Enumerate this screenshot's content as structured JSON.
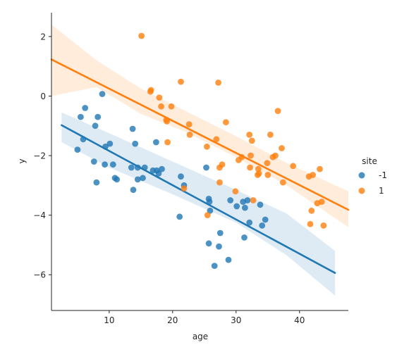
{
  "chart_data": {
    "type": "scatter",
    "xlabel": "age",
    "ylabel": "y",
    "xlim": [
      0.9,
      47.7
    ],
    "ylim": [
      -7.2,
      2.8
    ],
    "xticks": [
      10,
      20,
      30,
      40
    ],
    "yticks": [
      2,
      0,
      -2,
      -4,
      -6
    ],
    "grid": false,
    "legend": {
      "title": "site",
      "placement": "right",
      "entries": [
        {
          "label": "-1",
          "color": "#1f77b4"
        },
        {
          "label": "1",
          "color": "#ff7f0e"
        }
      ]
    },
    "series": [
      {
        "name": "-1",
        "color": "#1f77b4",
        "fit": {
          "x_start": 2.5,
          "x_end": 45.6,
          "y_start": -0.98,
          "y_end": -5.94
        },
        "ci": {
          "upper": [
            [
              2.5,
              -0.55
            ],
            [
              10,
              -1.25
            ],
            [
              20,
              -2.2
            ],
            [
              30,
              -3.15
            ],
            [
              38,
              -3.95
            ],
            [
              45.6,
              -5.2
            ]
          ],
          "lower": [
            [
              45.6,
              -6.7
            ],
            [
              38,
              -5.35
            ],
            [
              30,
              -4.25
            ],
            [
              20,
              -3.3
            ],
            [
              10,
              -2.4
            ],
            [
              2.5,
              -1.55
            ]
          ]
        },
        "points": [
          [
            5,
            -1.8
          ],
          [
            5.5,
            -0.7
          ],
          [
            5.9,
            -1.45
          ],
          [
            6.2,
            -0.4
          ],
          [
            7.6,
            -2.2
          ],
          [
            7.8,
            -1.0
          ],
          [
            8.0,
            -2.9
          ],
          [
            8.2,
            -0.7
          ],
          [
            8.9,
            0.07
          ],
          [
            9.3,
            -2.3
          ],
          [
            9.4,
            -1.7
          ],
          [
            10.1,
            -1.6
          ],
          [
            10.6,
            -2.3
          ],
          [
            10.9,
            -2.75
          ],
          [
            11.2,
            -2.8
          ],
          [
            13.5,
            -2.4
          ],
          [
            13.7,
            -1.1
          ],
          [
            13.8,
            -3.15
          ],
          [
            14.1,
            -1.6
          ],
          [
            14.5,
            -2.4
          ],
          [
            14.5,
            -2.8
          ],
          [
            15.3,
            -2.75
          ],
          [
            15.6,
            -2.4
          ],
          [
            16.9,
            -2.5
          ],
          [
            17.4,
            -1.55
          ],
          [
            17.5,
            -2.5
          ],
          [
            17.8,
            -2.6
          ],
          [
            18.3,
            -2.45
          ],
          [
            21.1,
            -4.05
          ],
          [
            21.3,
            -2.7
          ],
          [
            21.8,
            -3.0
          ],
          [
            25.3,
            -2.4
          ],
          [
            25.7,
            -4.95
          ],
          [
            25.7,
            -3.45
          ],
          [
            25.8,
            -3.55
          ],
          [
            25.9,
            -3.85
          ],
          [
            26.6,
            -5.7
          ],
          [
            27.3,
            -5.05
          ],
          [
            27.5,
            -4.6
          ],
          [
            28.8,
            -5.5
          ],
          [
            29.1,
            -3.5
          ],
          [
            30.1,
            -3.7
          ],
          [
            31.1,
            -3.55
          ],
          [
            31.3,
            -4.75
          ],
          [
            31.4,
            -3.75
          ],
          [
            31.8,
            -3.5
          ],
          [
            32.1,
            -4.25
          ],
          [
            33.8,
            -3.65
          ],
          [
            34.1,
            -4.35
          ],
          [
            34.6,
            -4.15
          ]
        ]
      },
      {
        "name": "1",
        "color": "#ff7f0e",
        "fit": {
          "x_start": 0.9,
          "x_end": 47.7,
          "y_start": 1.23,
          "y_end": -3.82
        },
        "ci": {
          "upper": [
            [
              0.9,
              2.4
            ],
            [
              8,
              1.2
            ],
            [
              15,
              0.25
            ],
            [
              22,
              -0.5
            ],
            [
              30,
              -1.35
            ],
            [
              38,
              -2.25
            ],
            [
              47.7,
              -3.2
            ]
          ],
          "lower": [
            [
              47.7,
              -4.4
            ],
            [
              38,
              -3.0
            ],
            [
              30,
              -2.05
            ],
            [
              22,
              -1.2
            ],
            [
              15,
              -0.6
            ],
            [
              8,
              0.3
            ],
            [
              0.9,
              0.0
            ]
          ]
        },
        "points": [
          [
            15.1,
            2.02
          ],
          [
            16.5,
            0.15
          ],
          [
            16.6,
            0.2
          ],
          [
            17.9,
            -0.05
          ],
          [
            18.2,
            -0.35
          ],
          [
            19.0,
            -0.8
          ],
          [
            19.1,
            -0.85
          ],
          [
            19.2,
            -1.55
          ],
          [
            19.8,
            -0.35
          ],
          [
            21.3,
            0.48
          ],
          [
            21.8,
            -3.1
          ],
          [
            22.6,
            -0.95
          ],
          [
            22.7,
            -1.3
          ],
          [
            25.4,
            -1.7
          ],
          [
            25.5,
            -4.0
          ],
          [
            26.9,
            -1.45
          ],
          [
            27.2,
            0.45
          ],
          [
            27.4,
            -2.9
          ],
          [
            27.4,
            -2.4
          ],
          [
            27.8,
            -2.3
          ],
          [
            28.4,
            -0.88
          ],
          [
            29.9,
            -3.2
          ],
          [
            30.4,
            -2.15
          ],
          [
            30.9,
            -2.05
          ],
          [
            32.1,
            -1.3
          ],
          [
            32.2,
            -2.4
          ],
          [
            32.3,
            -2.0
          ],
          [
            32.5,
            -1.5
          ],
          [
            32.7,
            -3.5
          ],
          [
            33.4,
            -2.65
          ],
          [
            33.5,
            -2.45
          ],
          [
            33.6,
            -2.6
          ],
          [
            34.9,
            -2.25
          ],
          [
            35.0,
            -2.65
          ],
          [
            35.4,
            -1.3
          ],
          [
            35.8,
            -2.05
          ],
          [
            36.2,
            -2.0
          ],
          [
            36.6,
            -0.5
          ],
          [
            37.2,
            -1.75
          ],
          [
            37.4,
            -2.9
          ],
          [
            39.0,
            -2.35
          ],
          [
            41.5,
            -2.7
          ],
          [
            41.7,
            -4.3
          ],
          [
            41.9,
            -3.85
          ],
          [
            42.1,
            -2.65
          ],
          [
            42.8,
            -3.6
          ],
          [
            43.2,
            -2.45
          ],
          [
            43.5,
            -3.55
          ],
          [
            43.8,
            -4.35
          ]
        ]
      }
    ]
  }
}
